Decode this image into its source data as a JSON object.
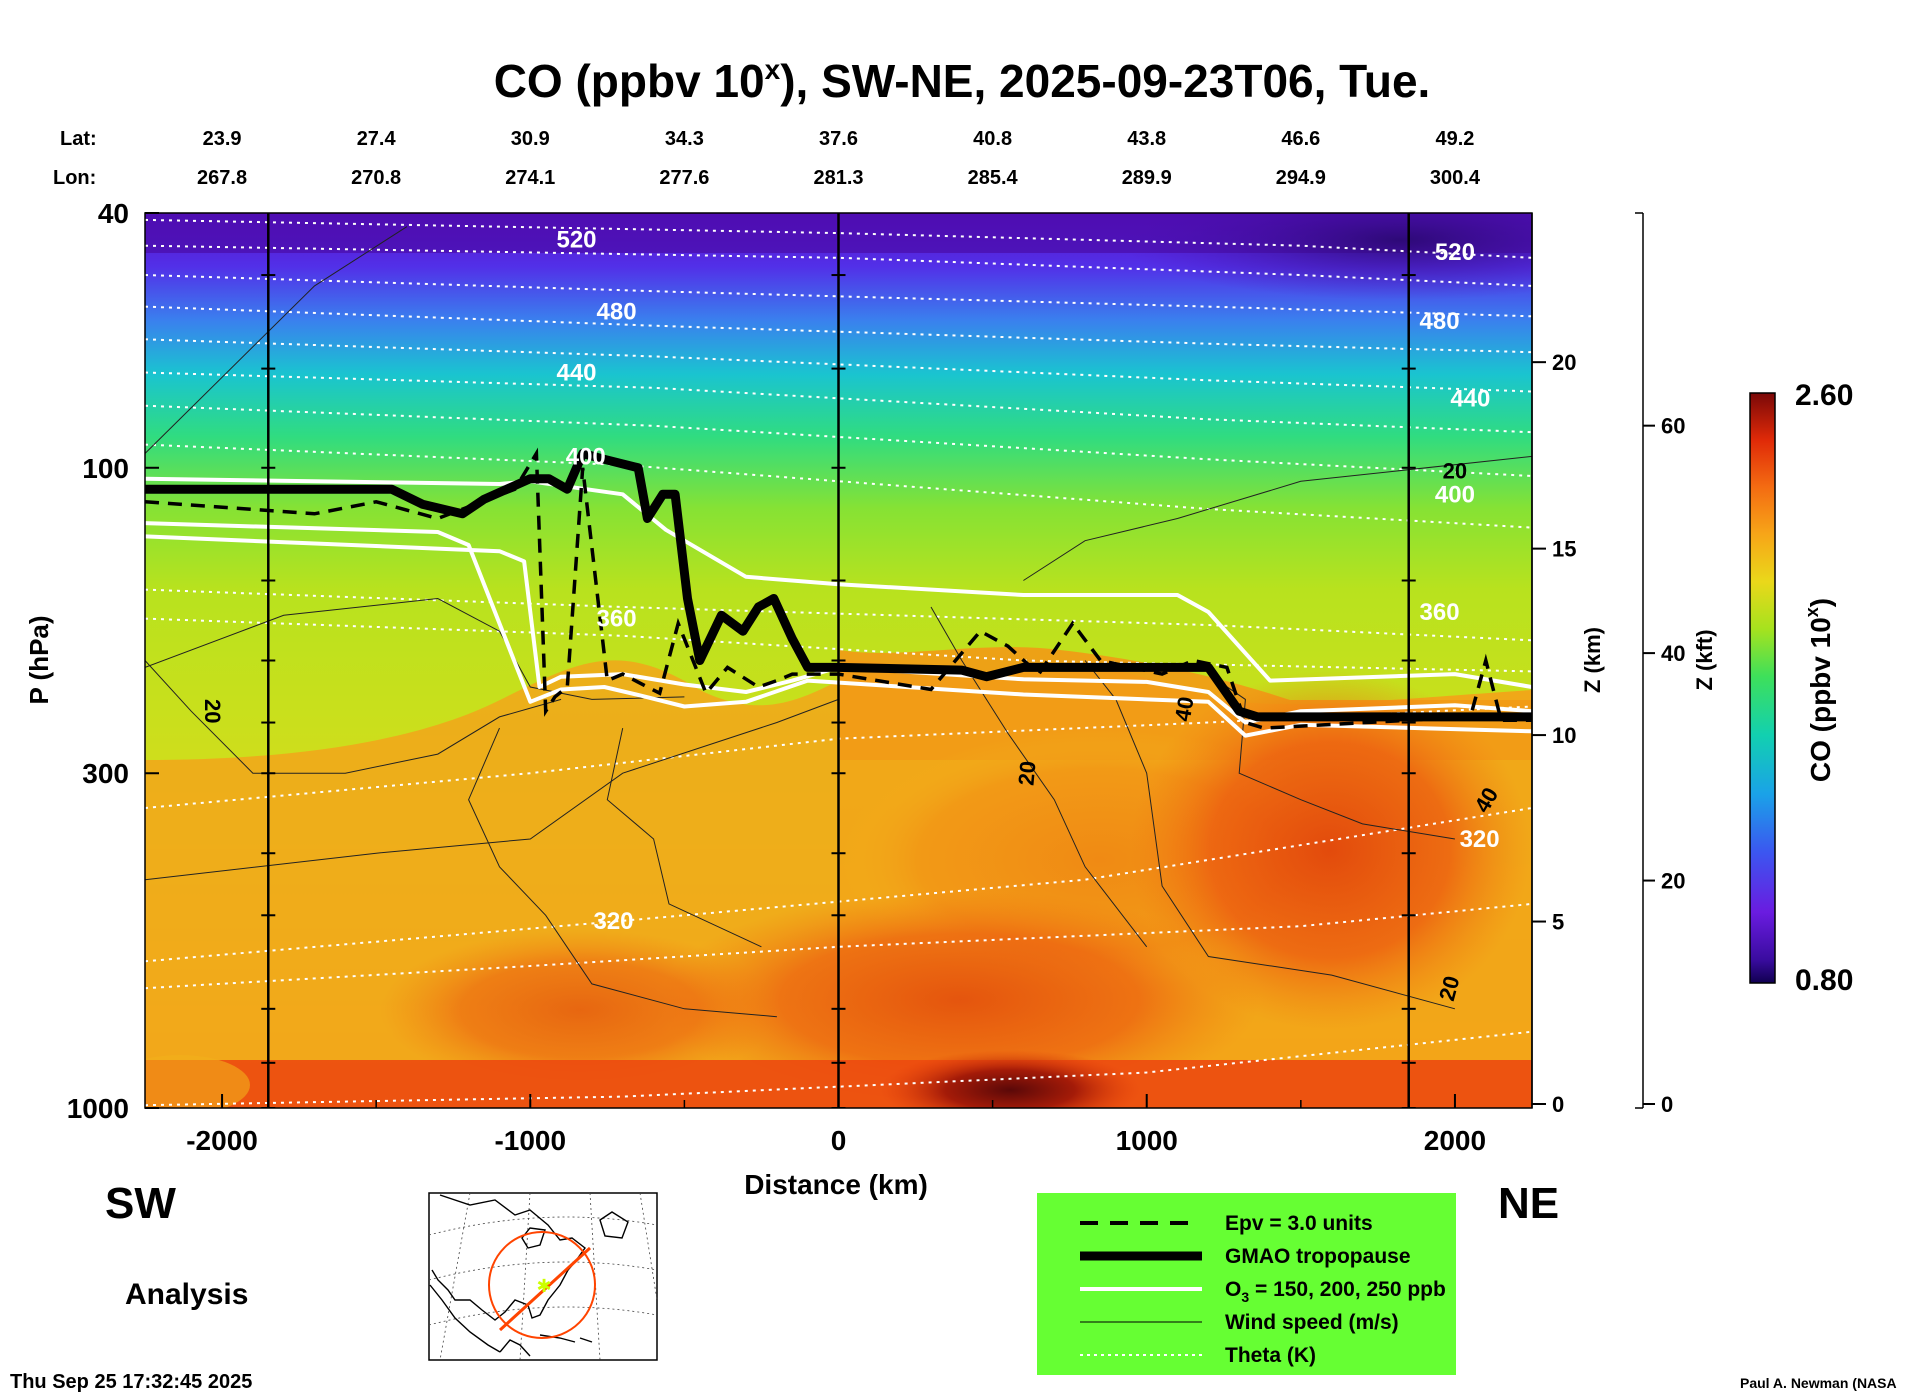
{
  "header": {
    "title": "CO (ppbv 10",
    "title_sup": "x",
    "title_rest": "), SW-NE, 2025-09-23T06, Tue."
  },
  "coords": {
    "lat_label": "Lat:",
    "lon_label": "Lon:",
    "lat": [
      "23.9",
      "27.4",
      "30.9",
      "34.3",
      "37.6",
      "40.8",
      "43.8",
      "46.6",
      "49.2"
    ],
    "lon": [
      "267.8",
      "270.8",
      "274.1",
      "277.6",
      "281.3",
      "285.4",
      "289.9",
      "294.9",
      "300.4"
    ],
    "lat_positions_km": [
      -2000,
      -1500,
      -1000,
      -500,
      0,
      500,
      1000,
      1500,
      2000
    ]
  },
  "chart_data": {
    "type": "heatmap",
    "title": "CO (ppbv 10^x), SW-NE, 2025-09-23T06, Tue.",
    "xlabel": "Distance (km)",
    "ylabel": "P (hPa)",
    "y2label": "Z (km)",
    "y3label": "Z (kft)",
    "xlim": [
      -2250,
      2250
    ],
    "ylim": [
      1000,
      40
    ],
    "y_scale": "log",
    "x_ticks": [
      -2000,
      -1000,
      0,
      1000,
      2000
    ],
    "x_tick_labels": [
      "-2000",
      "-1000",
      "0",
      "1000",
      "2000"
    ],
    "y_ticks": [
      1000,
      300,
      100,
      40
    ],
    "y_tick_labels": [
      "1000",
      "300",
      "100",
      "40"
    ],
    "z_km_ticks": [
      0,
      5,
      10,
      15,
      20
    ],
    "z_kft_ticks": [
      0,
      20,
      40,
      60
    ],
    "colorbar": {
      "label": "CO (ppbv 10",
      "label_sup": "x",
      "label_end": ")",
      "min_label": "0.80",
      "max_label": "2.60",
      "min": 0.8,
      "max": 2.6
    },
    "vertical_lines_km": [
      -1850,
      0,
      1850
    ],
    "theta_labels": [
      {
        "text": "520",
        "x": -850,
        "p": 44
      },
      {
        "text": "480",
        "x": -720,
        "p": 57
      },
      {
        "text": "440",
        "x": -850,
        "p": 71
      },
      {
        "text": "400",
        "x": -820,
        "p": 96
      },
      {
        "text": "360",
        "x": -720,
        "p": 172
      },
      {
        "text": "320",
        "x": -730,
        "p": 510
      },
      {
        "text": "520",
        "x": 2000,
        "p": 46
      },
      {
        "text": "480",
        "x": 1950,
        "p": 59
      },
      {
        "text": "440",
        "x": 2050,
        "p": 78
      },
      {
        "text": "400",
        "x": 2000,
        "p": 110
      },
      {
        "text": "360",
        "x": 1950,
        "p": 168
      },
      {
        "text": "320",
        "x": 2080,
        "p": 380
      }
    ],
    "wind_labels": [
      {
        "text": "20",
        "x": -2030,
        "p": 240,
        "rotate": 90
      },
      {
        "text": "20",
        "x": 610,
        "p": 300,
        "rotate": -85
      },
      {
        "text": "40",
        "x": 1120,
        "p": 238,
        "rotate": -80
      },
      {
        "text": "20",
        "x": 2000,
        "p": 101,
        "rotate": 0
      },
      {
        "text": "40",
        "x": 2100,
        "p": 330,
        "rotate": -60
      },
      {
        "text": "20",
        "x": 1980,
        "p": 650,
        "rotate": -75
      }
    ],
    "tropopause": [
      [
        -2250,
        108
      ],
      [
        -1450,
        108
      ],
      [
        -1350,
        114
      ],
      [
        -1220,
        118
      ],
      [
        -1150,
        112
      ],
      [
        -1000,
        104
      ],
      [
        -940,
        104
      ],
      [
        -880,
        108
      ],
      [
        -830,
        95
      ],
      [
        -760,
        97
      ],
      [
        -650,
        100
      ],
      [
        -620,
        120
      ],
      [
        -570,
        110
      ],
      [
        -530,
        110
      ],
      [
        -490,
        160
      ],
      [
        -450,
        200
      ],
      [
        -380,
        170
      ],
      [
        -310,
        180
      ],
      [
        -260,
        165
      ],
      [
        -210,
        160
      ],
      [
        -150,
        185
      ],
      [
        -100,
        205
      ],
      [
        0,
        205
      ],
      [
        400,
        207
      ],
      [
        480,
        212
      ],
      [
        600,
        205
      ],
      [
        1200,
        205
      ],
      [
        1300,
        240
      ],
      [
        1360,
        245
      ],
      [
        2250,
        245
      ]
    ],
    "epv_3": [
      [
        -2250,
        113
      ],
      [
        -1700,
        118
      ],
      [
        -1500,
        113
      ],
      [
        -1300,
        120
      ],
      [
        -1050,
        108
      ],
      [
        -980,
        95
      ],
      [
        -950,
        240
      ],
      [
        -920,
        228
      ],
      [
        -880,
        220
      ],
      [
        -830,
        100
      ],
      [
        -750,
        215
      ],
      [
        -700,
        210
      ],
      [
        -620,
        220
      ],
      [
        -580,
        225
      ],
      [
        -520,
        175
      ],
      [
        -430,
        225
      ],
      [
        -360,
        205
      ],
      [
        -260,
        220
      ],
      [
        -200,
        215
      ],
      [
        -150,
        210
      ],
      [
        0,
        210
      ],
      [
        300,
        222
      ],
      [
        460,
        180
      ],
      [
        550,
        190
      ],
      [
        650,
        210
      ],
      [
        760,
        175
      ],
      [
        850,
        200
      ],
      [
        1050,
        210
      ],
      [
        1150,
        200
      ],
      [
        1260,
        205
      ],
      [
        1320,
        250
      ],
      [
        1380,
        255
      ],
      [
        2050,
        245
      ],
      [
        2100,
        200
      ],
      [
        2150,
        248
      ],
      [
        2250,
        248
      ]
    ],
    "ozone_contours": [
      [
        [
          -2250,
          104
        ],
        [
          -1100,
          106
        ],
        [
          -1000,
          105
        ],
        [
          -700,
          110
        ],
        [
          -560,
          125
        ],
        [
          -300,
          148
        ],
        [
          0,
          152
        ],
        [
          600,
          158
        ],
        [
          1100,
          158
        ],
        [
          1200,
          168
        ],
        [
          1400,
          215
        ],
        [
          2000,
          210
        ],
        [
          2250,
          220
        ]
      ],
      [
        [
          -2250,
          128
        ],
        [
          -1100,
          135
        ],
        [
          -1020,
          140
        ],
        [
          -970,
          220
        ],
        [
          -900,
          212
        ],
        [
          -700,
          210
        ],
        [
          -500,
          218
        ],
        [
          -300,
          224
        ],
        [
          -150,
          215
        ],
        [
          0,
          205
        ],
        [
          600,
          214
        ],
        [
          1000,
          216
        ],
        [
          1200,
          224
        ],
        [
          1320,
          250
        ],
        [
          1500,
          240
        ],
        [
          2000,
          235
        ],
        [
          2250,
          240
        ]
      ],
      [
        [
          -2250,
          122
        ],
        [
          -1300,
          126
        ],
        [
          -1200,
          132
        ],
        [
          -1000,
          232
        ],
        [
          -900,
          222
        ],
        [
          -760,
          220
        ],
        [
          -640,
          227
        ],
        [
          -500,
          236
        ],
        [
          -300,
          232
        ],
        [
          -100,
          215
        ],
        [
          600,
          226
        ],
        [
          1200,
          232
        ],
        [
          1320,
          262
        ],
        [
          1500,
          252
        ],
        [
          2250,
          258
        ]
      ]
    ],
    "theta_contours": [
      [
        [
          -2250,
          41
        ],
        [
          0,
          43
        ],
        [
          1500,
          45
        ],
        [
          2250,
          47
        ]
      ],
      [
        [
          -2250,
          45
        ],
        [
          0,
          47
        ],
        [
          1500,
          50
        ],
        [
          2250,
          52
        ]
      ],
      [
        [
          -2250,
          50
        ],
        [
          -600,
          53
        ],
        [
          1200,
          56
        ],
        [
          2250,
          58
        ]
      ],
      [
        [
          -2250,
          56
        ],
        [
          -600,
          60
        ],
        [
          1200,
          64
        ],
        [
          2250,
          66
        ]
      ],
      [
        [
          -2250,
          63
        ],
        [
          -600,
          67
        ],
        [
          1200,
          73
        ],
        [
          2250,
          76
        ]
      ],
      [
        [
          -2250,
          71
        ],
        [
          -600,
          75
        ],
        [
          1200,
          84
        ],
        [
          2250,
          88
        ]
      ],
      [
        [
          -2250,
          80
        ],
        [
          -600,
          86
        ],
        [
          1200,
          97
        ],
        [
          2250,
          103
        ]
      ],
      [
        [
          -2250,
          92
        ],
        [
          -700,
          99
        ],
        [
          1200,
          116
        ],
        [
          2250,
          124
        ]
      ],
      [
        [
          -2250,
          155
        ],
        [
          -700,
          165
        ],
        [
          1200,
          176
        ],
        [
          2250,
          186
        ]
      ],
      [
        [
          -2250,
          172
        ],
        [
          -700,
          183
        ],
        [
          600,
          200
        ],
        [
          2250,
          208
        ]
      ],
      [
        [
          -2250,
          340
        ],
        [
          -1000,
          300
        ],
        [
          0,
          265
        ],
        [
          1200,
          250
        ],
        [
          2250,
          236
        ]
      ],
      [
        [
          -2250,
          590
        ],
        [
          -700,
          510
        ],
        [
          800,
          440
        ],
        [
          2250,
          340
        ]
      ],
      [
        [
          -2250,
          990
        ],
        [
          -700,
          960
        ],
        [
          1000,
          880
        ],
        [
          2250,
          760
        ]
      ],
      [
        [
          -2250,
          650
        ],
        [
          -1000,
          600
        ],
        [
          0,
          560
        ],
        [
          1500,
          520
        ],
        [
          2250,
          480
        ]
      ]
    ],
    "wind_contours": [
      [
        [
          -2250,
          95
        ],
        [
          -1700,
          52
        ],
        [
          -1400,
          42
        ]
      ],
      [
        [
          -2250,
          205
        ],
        [
          -1800,
          170
        ],
        [
          -1300,
          160
        ],
        [
          -1100,
          180
        ],
        [
          -1000,
          220
        ],
        [
          -800,
          230
        ],
        [
          -500,
          228
        ]
      ],
      [
        [
          -2250,
          200
        ],
        [
          -2100,
          240
        ],
        [
          -1900,
          300
        ],
        [
          -1600,
          300
        ],
        [
          -1300,
          280
        ],
        [
          -1100,
          245
        ],
        [
          -900,
          230
        ]
      ],
      [
        [
          -2250,
          440
        ],
        [
          -1500,
          400
        ],
        [
          -1000,
          380
        ],
        [
          -700,
          300
        ],
        [
          -200,
          250
        ],
        [
          0,
          230
        ]
      ],
      [
        [
          -1100,
          255
        ],
        [
          -1200,
          330
        ],
        [
          -1100,
          420
        ],
        [
          -950,
          500
        ],
        [
          -800,
          640
        ],
        [
          -500,
          700
        ],
        [
          -200,
          720
        ]
      ],
      [
        [
          -700,
          255
        ],
        [
          -750,
          330
        ],
        [
          -600,
          380
        ],
        [
          -550,
          480
        ],
        [
          -250,
          560
        ]
      ],
      [
        [
          300,
          165
        ],
        [
          400,
          200
        ],
        [
          550,
          260
        ],
        [
          700,
          330
        ],
        [
          800,
          420
        ],
        [
          1000,
          560
        ]
      ],
      [
        [
          600,
          150
        ],
        [
          800,
          130
        ],
        [
          1100,
          120
        ],
        [
          1500,
          105
        ],
        [
          2250,
          96
        ]
      ],
      [
        [
          800,
          200
        ],
        [
          900,
          230
        ],
        [
          1000,
          300
        ],
        [
          1050,
          450
        ],
        [
          1200,
          580
        ],
        [
          1600,
          620
        ],
        [
          2000,
          700
        ]
      ],
      [
        [
          1200,
          210
        ],
        [
          1320,
          230
        ],
        [
          1300,
          300
        ],
        [
          1500,
          330
        ],
        [
          1700,
          360
        ],
        [
          2000,
          380
        ]
      ]
    ]
  },
  "labels": {
    "sw": "SW",
    "ne": "NE",
    "analysis": "Analysis",
    "timestamp": "Thu Sep 25 17:32:45 2025",
    "credit": "Paul A. Newman (NASA"
  },
  "legend": {
    "bg": "#66ff33",
    "items": [
      {
        "style": "dash",
        "label": "Epv = 3.0 units"
      },
      {
        "style": "thick",
        "label": "GMAO tropopause"
      },
      {
        "style": "white",
        "label": "O",
        "sub": "3",
        "label_rest": " = 150, 200, 250 ppb"
      },
      {
        "style": "thin",
        "label": "Wind speed (m/s)"
      },
      {
        "style": "dotted",
        "label": "Theta (K)"
      }
    ]
  },
  "colors": {
    "ocean": "#ffffff",
    "land": "#ffffff",
    "track": "#ff4400",
    "marker": "#ccff00"
  }
}
